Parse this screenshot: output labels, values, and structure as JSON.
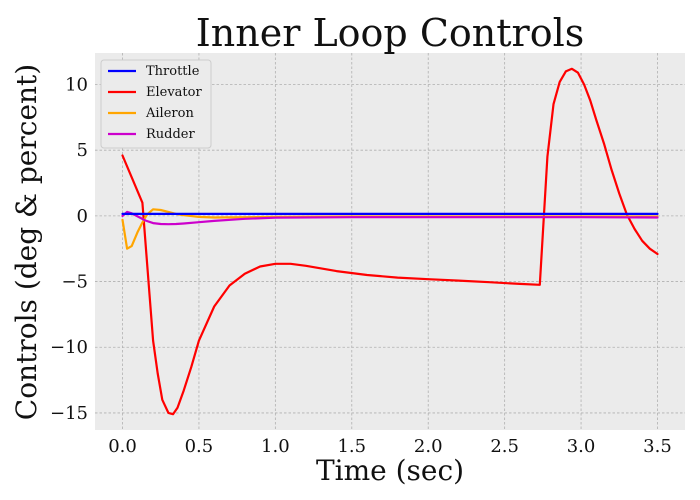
{
  "chart_data": {
    "type": "line",
    "title": "Inner Loop Controls",
    "xlabel": "Time (sec)",
    "ylabel": "Controls (deg & percent)",
    "xlim": [
      -0.18,
      3.68
    ],
    "ylim": [
      -16.3,
      12.4
    ],
    "xticks": [
      0.0,
      0.5,
      1.0,
      1.5,
      2.0,
      2.5,
      3.0,
      3.5
    ],
    "xtick_labels": [
      "0.0",
      "0.5",
      "1.0",
      "1.5",
      "2.0",
      "2.5",
      "3.0",
      "3.5"
    ],
    "yticks": [
      10,
      5,
      0,
      -5,
      -10,
      -15
    ],
    "ytick_labels": [
      "10",
      "5",
      "0",
      "−5",
      "−10",
      "−15"
    ],
    "grid": true,
    "legend_position": "upper-left",
    "series": [
      {
        "name": "Throttle",
        "color": "#0000ff",
        "x": [
          0.0,
          0.05,
          0.1,
          0.15,
          0.2,
          0.5,
          1.0,
          1.5,
          2.0,
          2.5,
          3.0,
          3.5
        ],
        "y": [
          0.15,
          0.15,
          0.15,
          0.15,
          0.15,
          0.15,
          0.15,
          0.15,
          0.15,
          0.15,
          0.15,
          0.15
        ]
      },
      {
        "name": "Elevator",
        "color": "#ff0000",
        "x": [
          0.0,
          0.13,
          0.17,
          0.2,
          0.23,
          0.26,
          0.3,
          0.33,
          0.36,
          0.4,
          0.45,
          0.5,
          0.6,
          0.7,
          0.8,
          0.9,
          1.0,
          1.1,
          1.2,
          1.4,
          1.6,
          1.8,
          2.0,
          2.2,
          2.4,
          2.6,
          2.73,
          2.78,
          2.82,
          2.86,
          2.9,
          2.94,
          2.98,
          3.02,
          3.06,
          3.1,
          3.15,
          3.2,
          3.25,
          3.3,
          3.35,
          3.4,
          3.45,
          3.5
        ],
        "y": [
          4.6,
          1.0,
          -5.0,
          -9.5,
          -12.0,
          -14.0,
          -15.0,
          -15.1,
          -14.6,
          -13.3,
          -11.5,
          -9.5,
          -6.9,
          -5.3,
          -4.4,
          -3.85,
          -3.65,
          -3.65,
          -3.8,
          -4.2,
          -4.5,
          -4.7,
          -4.82,
          -4.93,
          -5.05,
          -5.18,
          -5.25,
          4.5,
          8.5,
          10.2,
          11.0,
          11.2,
          10.9,
          10.0,
          8.8,
          7.3,
          5.5,
          3.5,
          1.7,
          0.1,
          -1.0,
          -1.9,
          -2.5,
          -2.9
        ]
      },
      {
        "name": "Aileron",
        "color": "#ffa500",
        "x": [
          0.0,
          0.03,
          0.06,
          0.1,
          0.13,
          0.16,
          0.2,
          0.25,
          0.3,
          0.35,
          0.4,
          0.5,
          0.6,
          0.8,
          1.0,
          1.5,
          2.0,
          2.5,
          3.0,
          3.5
        ],
        "y": [
          -0.3,
          -2.5,
          -2.3,
          -1.2,
          -0.5,
          0.1,
          0.5,
          0.45,
          0.3,
          0.15,
          0.05,
          -0.08,
          -0.12,
          -0.1,
          -0.08,
          -0.05,
          -0.05,
          -0.05,
          -0.05,
          -0.05
        ]
      },
      {
        "name": "Rudder",
        "color": "#cc00cc",
        "x": [
          0.0,
          0.03,
          0.06,
          0.1,
          0.15,
          0.2,
          0.25,
          0.3,
          0.35,
          0.4,
          0.5,
          0.6,
          0.8,
          1.0,
          1.5,
          2.0,
          2.5,
          3.0,
          3.5
        ],
        "y": [
          0.0,
          0.3,
          0.2,
          -0.05,
          -0.35,
          -0.55,
          -0.62,
          -0.63,
          -0.62,
          -0.58,
          -0.48,
          -0.38,
          -0.22,
          -0.14,
          -0.1,
          -0.1,
          -0.1,
          -0.1,
          -0.12
        ]
      }
    ]
  }
}
